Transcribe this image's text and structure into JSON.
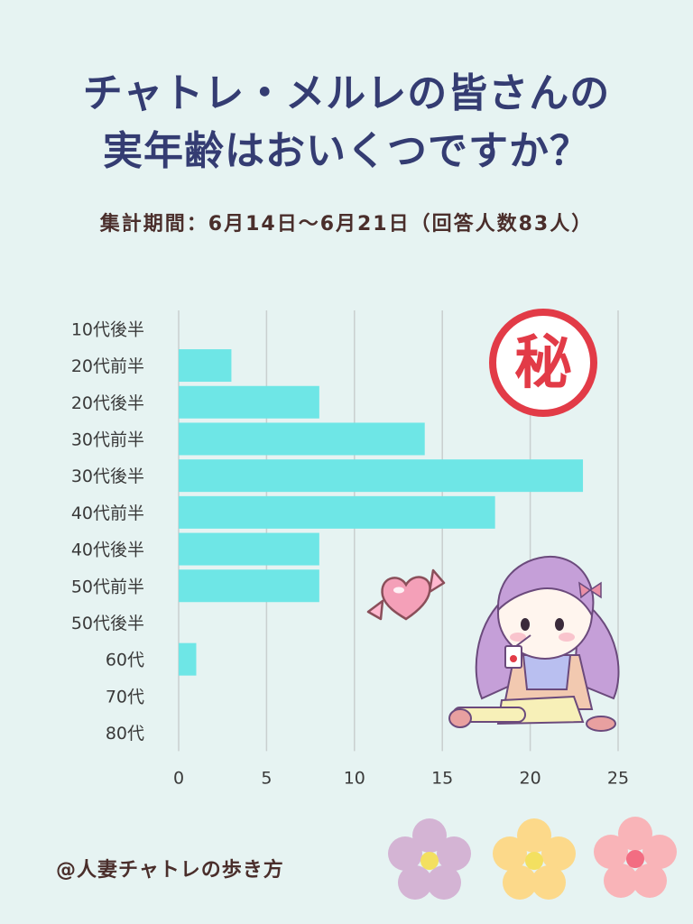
{
  "header": {
    "title_line1": "チャトレ・メルレの皆さんの",
    "title_line2": "実年齢はおいくつですか？",
    "subtitle": "集計期間：6月14日～6月21日（回答人数83人）"
  },
  "footer": {
    "credit": "@人妻チャトレの歩き方"
  },
  "seal": {
    "char": "秘",
    "color": "#e23b47"
  },
  "colors": {
    "bar": "#6ee6e6",
    "title": "#343c72",
    "text": "#4a2e2b",
    "background": "#e6f3f2"
  },
  "chart_data": {
    "type": "bar",
    "orientation": "horizontal",
    "categories": [
      "10代後半",
      "20代前半",
      "20代後半",
      "30代前半",
      "30代後半",
      "40代前半",
      "40代後半",
      "50代前半",
      "50代後半",
      "60代",
      "70代",
      "80代"
    ],
    "values": [
      0,
      3,
      8,
      14,
      23,
      18,
      8,
      8,
      0,
      1,
      0,
      0
    ],
    "xlim": [
      0,
      25
    ],
    "xticks": [
      0,
      5,
      10,
      15,
      20,
      25
    ],
    "grid": true
  }
}
